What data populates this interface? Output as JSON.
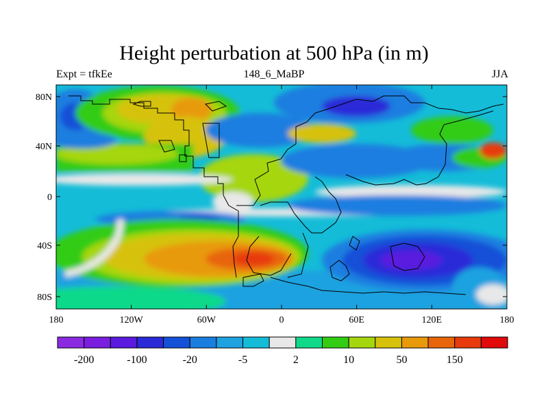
{
  "title": "Height perturbation at 500 hPa (in m)",
  "subtitle_left": "Expt = tfkEe",
  "subtitle_center": "148_6_MaBP",
  "subtitle_right": "JJA",
  "map": {
    "lat_ticks": [
      "80N",
      "40N",
      "0",
      "40S",
      "80S"
    ],
    "lon_ticks": [
      "180",
      "120W",
      "60W",
      "0",
      "60E",
      "120E",
      "180"
    ]
  },
  "colorbar": {
    "colors": [
      "#8a2be2",
      "#7a1ee0",
      "#5a1adf",
      "#2a2ad8",
      "#1550d8",
      "#1a7ee0",
      "#1ea2e0",
      "#14bcd8",
      "#e8e8e8",
      "#11d98a",
      "#33cc14",
      "#a6d60e",
      "#d6c20a",
      "#e89a0a",
      "#e8650c",
      "#e83a0c",
      "#e00a0a"
    ],
    "labels": [
      {
        "text": "-200",
        "after_box": 1
      },
      {
        "text": "-100",
        "after_box": 3
      },
      {
        "text": "-20",
        "after_box": 5
      },
      {
        "text": "-5",
        "after_box": 7
      },
      {
        "text": "2",
        "after_box": 9
      },
      {
        "text": "10",
        "after_box": 11
      },
      {
        "text": "50",
        "after_box": 13
      },
      {
        "text": "150",
        "after_box": 15
      }
    ]
  }
}
